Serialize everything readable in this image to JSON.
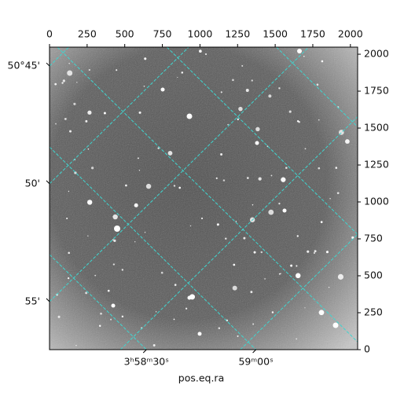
{
  "chart_data": {
    "type": "image",
    "xlabel": "pos.eq.ra",
    "xlim": [
      0,
      2048
    ],
    "ylim": [
      0,
      2048
    ],
    "xticks": [
      0,
      250,
      500,
      750,
      1000,
      1250,
      1500,
      1750,
      2000
    ],
    "yticks": [
      0,
      250,
      500,
      750,
      1000,
      1250,
      1500,
      1750,
      2000
    ],
    "raticks": [
      {
        "value": 14310,
        "label": "3ʰ58ᵐ30ˢ"
      },
      {
        "value": 14340,
        "label": "59ᵐ00ˢ"
      }
    ],
    "decticks": [
      {
        "value": 50.75,
        "label": "50°45'"
      },
      {
        "value": 50.8333,
        "label": "50'"
      },
      {
        "value": 50.9167,
        "label": "55'"
      }
    ],
    "grid": true,
    "grid_color": "#3fd6d0"
  }
}
